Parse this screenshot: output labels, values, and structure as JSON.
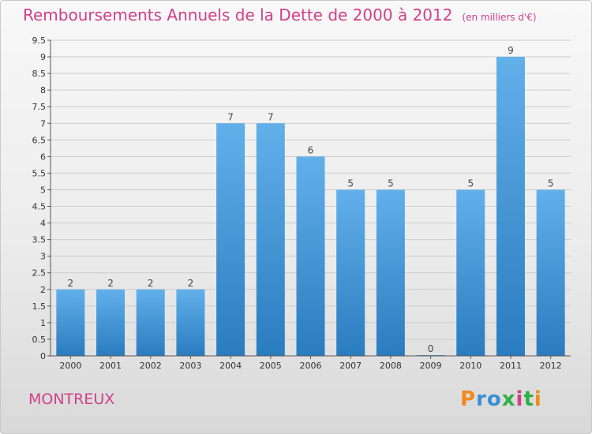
{
  "header": {
    "title": "Remboursements Annuels de la Dette de 2000 à 2012",
    "subtitle": "(en milliers d'€)"
  },
  "footer": {
    "place": "MONTREUX",
    "logo": "Proxiti"
  },
  "colors": {
    "title": "#d0408a",
    "bar_top": "#62b0ea",
    "bar_bottom": "#2a7cc0",
    "grid": "#cccccc"
  },
  "chart_data": {
    "type": "bar",
    "categories": [
      "2000",
      "2001",
      "2002",
      "2003",
      "2004",
      "2005",
      "2006",
      "2007",
      "2008",
      "2009",
      "2010",
      "2011",
      "2012"
    ],
    "values": [
      2,
      2,
      2,
      2,
      7,
      7,
      6,
      5,
      5,
      0,
      5,
      9,
      5
    ],
    "data_labels": [
      "2",
      "2",
      "2",
      "2",
      "7",
      "7",
      "6",
      "5",
      "5",
      "0",
      "5",
      "9",
      "5"
    ],
    "y_ticks": [
      "0",
      "0.5",
      "1",
      "1.5",
      "2",
      "2.5",
      "3",
      "3.5",
      "4",
      "4.5",
      "5",
      "5.5",
      "6",
      "6.5",
      "7",
      "7.5",
      "8",
      "8.5",
      "9",
      "9.5"
    ],
    "ylim": [
      0,
      9.5
    ],
    "grid": "horizontal",
    "xlabel": "",
    "ylabel": ""
  }
}
